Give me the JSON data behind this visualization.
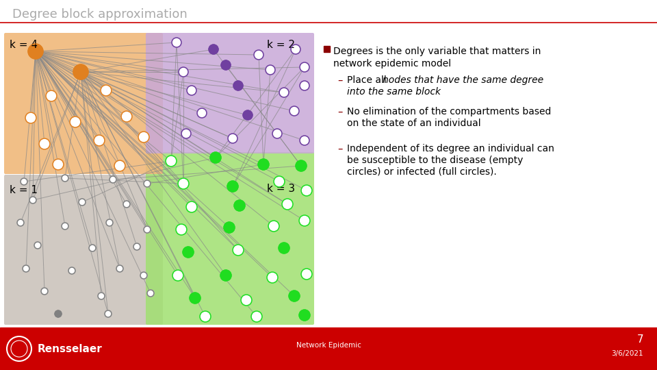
{
  "title": "Degree block approximation",
  "title_color": "#aaaaaa",
  "title_fontsize": 13,
  "bg_color": "#ffffff",
  "footer_bg_color": "#cc0000",
  "footer_text": "Network Epidemic",
  "footer_page": "7",
  "footer_date": "3/6/2021",
  "slide_line_color": "#cc0000",
  "bullet_color": "#8b0000",
  "block_colors": {
    "k4": "#f0b87a",
    "k2": "#c8a8d8",
    "k1": "#c8c0b8",
    "k3": "#a0e070"
  },
  "node_colors": {
    "k4_filled": "#e08020",
    "k4_empty_border": "#e08020",
    "k2_filled": "#7040a0",
    "k2_empty_border": "#7040a0",
    "k1_filled": "#808080",
    "k1_empty_border": "#808080",
    "k3_filled": "#20dd20",
    "k3_empty_border": "#20dd20"
  }
}
